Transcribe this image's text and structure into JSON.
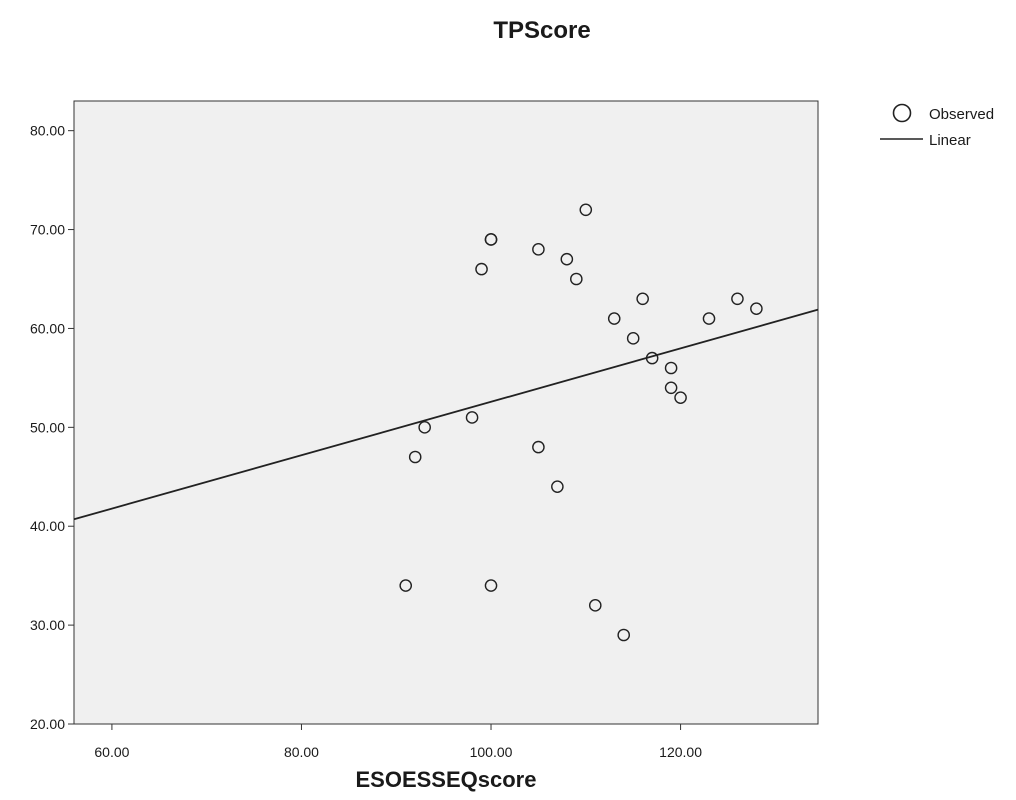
{
  "chart_data": {
    "type": "scatter",
    "title": "TPScore",
    "xlabel": "ESOESSEQscore",
    "ylabel": "",
    "xlim": [
      56,
      134.5
    ],
    "ylim": [
      20,
      83
    ],
    "xticks": [
      60,
      80,
      100,
      120
    ],
    "yticks": [
      20,
      30,
      40,
      50,
      60,
      70,
      80
    ],
    "xtick_labels": [
      "60.00",
      "80.00",
      "100.00",
      "120.00"
    ],
    "ytick_labels": [
      "20.00",
      "30.00",
      "40.00",
      "50.00",
      "60.00",
      "70.00",
      "80.00"
    ],
    "grid": false,
    "legend_position": "top-right-outside",
    "background_color": "#f0f0f0",
    "marker_color": "#222222",
    "line_color": "#222222",
    "series": [
      {
        "name": "Observed",
        "kind": "points",
        "points": [
          {
            "x": 91,
            "y": 34
          },
          {
            "x": 92,
            "y": 47
          },
          {
            "x": 93,
            "y": 50
          },
          {
            "x": 98,
            "y": 51
          },
          {
            "x": 99,
            "y": 66
          },
          {
            "x": 100,
            "y": 69
          },
          {
            "x": 100,
            "y": 69
          },
          {
            "x": 100,
            "y": 34
          },
          {
            "x": 105,
            "y": 68
          },
          {
            "x": 105,
            "y": 48
          },
          {
            "x": 107,
            "y": 44
          },
          {
            "x": 108,
            "y": 67
          },
          {
            "x": 109,
            "y": 65
          },
          {
            "x": 110,
            "y": 72
          },
          {
            "x": 111,
            "y": 32
          },
          {
            "x": 113,
            "y": 61
          },
          {
            "x": 114,
            "y": 29
          },
          {
            "x": 115,
            "y": 59
          },
          {
            "x": 116,
            "y": 63
          },
          {
            "x": 117,
            "y": 57
          },
          {
            "x": 119,
            "y": 56
          },
          {
            "x": 119,
            "y": 54
          },
          {
            "x": 120,
            "y": 53
          },
          {
            "x": 123,
            "y": 61
          },
          {
            "x": 126,
            "y": 63
          },
          {
            "x": 128,
            "y": 62
          }
        ]
      },
      {
        "name": "Linear",
        "kind": "line",
        "points": [
          {
            "x": 56,
            "y": 40.7
          },
          {
            "x": 134.5,
            "y": 61.9
          }
        ]
      }
    ]
  }
}
